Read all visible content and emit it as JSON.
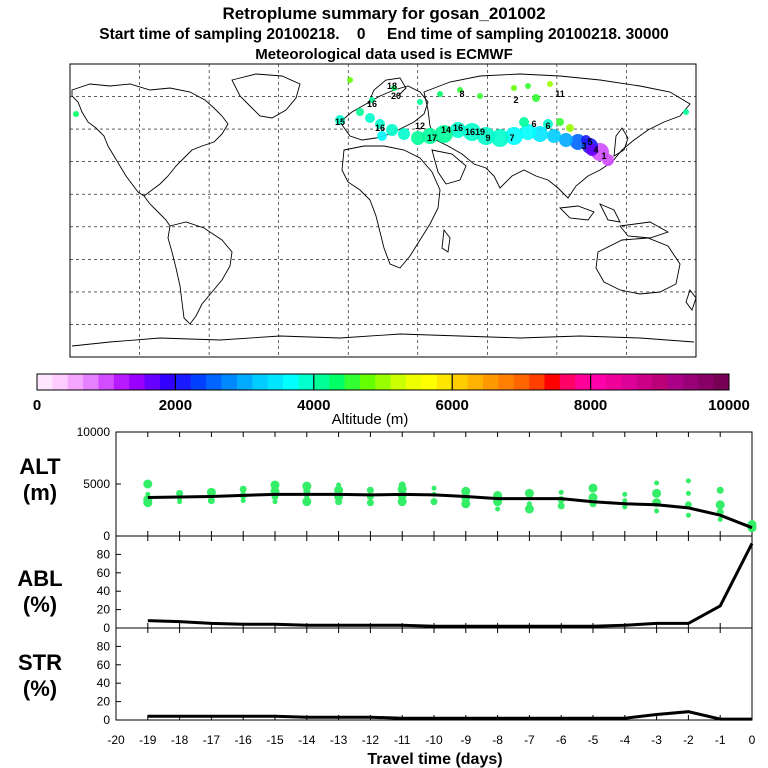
{
  "header": {
    "title": "Retroplume summary for gosan_201002",
    "sampling_line": "Start time of sampling 20100218.    0     End time of sampling 20100218. 30000",
    "met_line": "Meteorological data used is ECMWF"
  },
  "colorbar": {
    "title": "Altitude (m)",
    "ticks": [
      "0",
      "2000",
      "4000",
      "6000",
      "8000",
      "10000"
    ],
    "colors": [
      "#ffe6ff",
      "#ffccff",
      "#f5a6ff",
      "#e680ff",
      "#d24dff",
      "#b81aff",
      "#9900ff",
      "#6600ff",
      "#3300ff",
      "#1a1aff",
      "#0040ff",
      "#0066ff",
      "#0088ff",
      "#00aaff",
      "#00ccff",
      "#00e5ff",
      "#00ffff",
      "#00ffcc",
      "#00ff99",
      "#00ff66",
      "#33ff33",
      "#66ff00",
      "#99ff00",
      "#ccff00",
      "#eeff00",
      "#ffff00",
      "#ffe600",
      "#ffcc00",
      "#ffb300",
      "#ff9900",
      "#ff8000",
      "#ff6600",
      "#ff4000",
      "#ff0000",
      "#ff0066",
      "#ff0099",
      "#ff00aa",
      "#ee0099",
      "#dd0099",
      "#cc0088",
      "#bb0077",
      "#aa0088",
      "#990077",
      "#880066",
      "#770055"
    ]
  },
  "map_labels": [
    "18",
    "16",
    "16",
    "6",
    "6",
    "2",
    "14",
    "17",
    "16",
    "9",
    "7",
    "5",
    "4",
    "3",
    "12",
    "15",
    "11",
    "20",
    "8",
    "1",
    "16",
    "19"
  ],
  "panels": {
    "alt": {
      "label_top": "ALT",
      "label_bottom": "(m)"
    },
    "abl": {
      "label_top": "ABL",
      "label_bottom": "(%)"
    },
    "str": {
      "label_top": "STR",
      "label_bottom": "(%)"
    }
  },
  "xaxis_label": "Travel time (days)",
  "chart_data": [
    {
      "type": "line",
      "name": "ALT",
      "ylabel": "ALT (m)",
      "ylim": [
        0,
        10000
      ],
      "yticks": [
        "0",
        "5000",
        "10000"
      ],
      "xlim": [
        -20,
        0
      ],
      "xticks": [
        "-20",
        "-19",
        "-18",
        "-17",
        "-16",
        "-15",
        "-14",
        "-13",
        "-12",
        "-11",
        "-10",
        "-9",
        "-8",
        "-7",
        "-6",
        "-5",
        "-4",
        "-3",
        "-2",
        "-1",
        "0"
      ],
      "x": [
        -19,
        -18,
        -17,
        -16,
        -15,
        -14,
        -13,
        -12,
        -11,
        -10,
        -9,
        -8,
        -7,
        -6,
        -5,
        -4,
        -3,
        -2,
        -1,
        0
      ],
      "y": [
        3700,
        3750,
        3800,
        3900,
        4000,
        4000,
        4000,
        3950,
        4000,
        3950,
        3800,
        3600,
        3600,
        3600,
        3300,
        3100,
        3000,
        2700,
        2000,
        800
      ],
      "scatter": [
        [
          -19,
          3200
        ],
        [
          -19,
          3500
        ],
        [
          -19,
          4000
        ],
        [
          -19,
          5000
        ],
        [
          -18,
          3300
        ],
        [
          -18,
          3600
        ],
        [
          -18,
          4100
        ],
        [
          -17,
          3400
        ],
        [
          -17,
          3800
        ],
        [
          -17,
          4200
        ],
        [
          -16,
          3400
        ],
        [
          -16,
          3900
        ],
        [
          -16,
          4500
        ],
        [
          -15,
          3300
        ],
        [
          -15,
          3800
        ],
        [
          -15,
          4300
        ],
        [
          -15,
          4900
        ],
        [
          -14,
          3300
        ],
        [
          -14,
          3800
        ],
        [
          -14,
          4300
        ],
        [
          -14,
          4800
        ],
        [
          -13,
          3300
        ],
        [
          -13,
          3800
        ],
        [
          -13,
          4400
        ],
        [
          -13,
          4900
        ],
        [
          -12,
          3200
        ],
        [
          -12,
          3800
        ],
        [
          -12,
          4400
        ],
        [
          -11,
          3300
        ],
        [
          -11,
          3900
        ],
        [
          -11,
          4500
        ],
        [
          -11,
          4900
        ],
        [
          -10,
          3300
        ],
        [
          -10,
          4000
        ],
        [
          -10,
          4600
        ],
        [
          -9,
          3100
        ],
        [
          -9,
          3700
        ],
        [
          -9,
          4300
        ],
        [
          -8,
          2600
        ],
        [
          -8,
          3300
        ],
        [
          -8,
          3900
        ],
        [
          -7,
          2600
        ],
        [
          -7,
          3100
        ],
        [
          -7,
          3700
        ],
        [
          -7,
          4100
        ],
        [
          -6,
          2900
        ],
        [
          -6,
          3500
        ],
        [
          -6,
          4200
        ],
        [
          -5,
          3100
        ],
        [
          -5,
          3700
        ],
        [
          -5,
          4600
        ],
        [
          -4,
          2800
        ],
        [
          -4,
          3400
        ],
        [
          -4,
          4000
        ],
        [
          -3,
          2400
        ],
        [
          -3,
          3200
        ],
        [
          -3,
          4100
        ],
        [
          -3,
          5100
        ],
        [
          -2,
          2000
        ],
        [
          -2,
          3000
        ],
        [
          -2,
          4100
        ],
        [
          -2,
          5300
        ],
        [
          -1,
          1600
        ],
        [
          -1,
          2300
        ],
        [
          -1,
          3000
        ],
        [
          -1,
          4400
        ],
        [
          0,
          800
        ],
        [
          0,
          1100
        ]
      ]
    },
    {
      "type": "line",
      "name": "ABL",
      "ylabel": "ABL (%)",
      "ylim": [
        0,
        100
      ],
      "yticks": [
        "0",
        "20",
        "40",
        "60",
        "80"
      ],
      "xlim": [
        -20,
        0
      ],
      "x": [
        -19,
        -18,
        -17,
        -16,
        -15,
        -14,
        -13,
        -12,
        -11,
        -10,
        -9,
        -8,
        -7,
        -6,
        -5,
        -4,
        -3,
        -2,
        -1,
        0
      ],
      "y": [
        8,
        7,
        5,
        4,
        4,
        3,
        3,
        3,
        3,
        2,
        2,
        2,
        2,
        2,
        2,
        3,
        5,
        5,
        24,
        92
      ]
    },
    {
      "type": "line",
      "name": "STR",
      "ylabel": "STR (%)",
      "ylim": [
        0,
        100
      ],
      "yticks": [
        "0",
        "20",
        "40",
        "60",
        "80"
      ],
      "xlim": [
        -20,
        0
      ],
      "x": [
        -19,
        -18,
        -17,
        -16,
        -15,
        -14,
        -13,
        -12,
        -11,
        -10,
        -9,
        -8,
        -7,
        -6,
        -5,
        -4,
        -3,
        -2,
        -1,
        0
      ],
      "y": [
        4,
        4,
        4,
        4,
        4,
        3,
        3,
        3,
        2,
        2,
        2,
        2,
        2,
        2,
        2,
        2,
        6,
        9,
        1,
        1
      ]
    }
  ]
}
